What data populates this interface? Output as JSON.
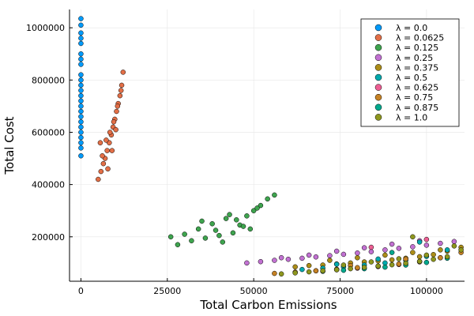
{
  "chart_data": {
    "type": "scatter",
    "title": "",
    "xlabel": "Total Carbon Emissions",
    "ylabel": "Total Cost",
    "xlim": [
      -3300,
      111000
    ],
    "ylim": [
      30000,
      1070000
    ],
    "xticks": [
      0,
      25000,
      50000,
      75000,
      100000
    ],
    "xtick_labels": [
      "0",
      "25000",
      "50000",
      "75000",
      "100000"
    ],
    "yticks": [
      200000,
      400000,
      600000,
      800000,
      1000000
    ],
    "ytick_labels": [
      "200000",
      "400000",
      "600000",
      "800000",
      "1000000"
    ],
    "grid": true,
    "legend_position": "top-right",
    "series": [
      {
        "name": "λ = 0.0",
        "color": "#009AFA",
        "x": [
          0,
          0,
          0,
          0,
          0,
          0,
          0,
          0,
          0,
          0,
          0,
          0,
          0,
          0,
          0,
          0,
          0,
          0,
          0,
          0,
          0,
          0,
          0,
          0
        ],
        "y": [
          510000,
          540000,
          580000,
          620000,
          660000,
          700000,
          740000,
          780000,
          820000,
          860000,
          900000,
          940000,
          980000,
          1010000,
          1035000,
          560000,
          600000,
          640000,
          680000,
          720000,
          760000,
          800000,
          880000,
          960000
        ]
      },
      {
        "name": "λ = 0.0625",
        "color": "#E36F47",
        "x": [
          5000,
          5800,
          6500,
          7000,
          7600,
          8200,
          8800,
          9300,
          9800,
          10300,
          10800,
          11300,
          11800,
          12200,
          6200,
          7300,
          8400,
          9500,
          10600,
          11600,
          5600,
          7800,
          9000,
          10100
        ],
        "y": [
          420000,
          450000,
          480000,
          500000,
          530000,
          560000,
          590000,
          620000,
          650000,
          680000,
          710000,
          740000,
          780000,
          830000,
          510000,
          570000,
          600000,
          640000,
          700000,
          760000,
          560000,
          460000,
          530000,
          610000
        ]
      },
      {
        "name": "λ = 0.125",
        "color": "#3EA44E",
        "x": [
          26000,
          28000,
          30000,
          32000,
          34000,
          36000,
          38000,
          40000,
          42000,
          44000,
          46000,
          48000,
          50000,
          52000,
          54000,
          56000,
          35000,
          39000,
          43000,
          47000,
          51000,
          41000,
          45000,
          49000
        ],
        "y": [
          200000,
          170000,
          210000,
          185000,
          230000,
          195000,
          250000,
          205000,
          270000,
          215000,
          245000,
          280000,
          300000,
          320000,
          345000,
          360000,
          260000,
          225000,
          285000,
          240000,
          310000,
          180000,
          265000,
          230000
        ]
      },
      {
        "name": "λ = 0.25",
        "color": "#C271D2",
        "x": [
          48000,
          52000,
          56000,
          60000,
          64000,
          68000,
          72000,
          76000,
          80000,
          84000,
          88000,
          92000,
          96000,
          100000,
          104000,
          108000,
          58000,
          66000,
          74000,
          82000,
          90000,
          98000
        ],
        "y": [
          100000,
          105000,
          110000,
          114000,
          118000,
          123000,
          128000,
          133000,
          138000,
          143000,
          150000,
          156000,
          162000,
          168000,
          175000,
          182000,
          120000,
          130000,
          145000,
          158000,
          172000,
          185000
        ]
      },
      {
        "name": "λ = 0.375",
        "color": "#AC8D18",
        "x": [
          62000,
          66000,
          70000,
          74000,
          78000,
          82000,
          86000,
          90000,
          94000,
          98000,
          102000,
          106000,
          110000,
          72000,
          80000,
          88000,
          96000,
          104000
        ],
        "y": [
          85000,
          90000,
          92000,
          96000,
          100000,
          104000,
          108000,
          112000,
          118000,
          124000,
          132000,
          145000,
          160000,
          110000,
          120000,
          130000,
          140000,
          150000
        ]
      },
      {
        "name": "λ = 0.5",
        "color": "#00A9AD",
        "x": [
          64000,
          70000,
          76000,
          82000,
          88000,
          94000,
          100000,
          106000,
          74000,
          86000,
          98000
        ],
        "y": [
          75000,
          80000,
          85000,
          92000,
          100000,
          110000,
          125000,
          150000,
          95000,
          115000,
          180000
        ]
      },
      {
        "name": "λ = 0.625",
        "color": "#ED5E93",
        "x": [
          68000,
          74000,
          80000,
          86000,
          92000,
          98000,
          104000,
          84000,
          100000
        ],
        "y": [
          70000,
          74000,
          80000,
          86000,
          94000,
          104000,
          120000,
          160000,
          190000
        ]
      },
      {
        "name": "λ = 0.75",
        "color": "#C68225",
        "x": [
          56000,
          62000,
          68000,
          74000,
          80000,
          86000,
          92000,
          98000,
          104000,
          110000,
          78000,
          94000
        ],
        "y": [
          60000,
          65000,
          70000,
          76000,
          82000,
          88000,
          96000,
          106000,
          120000,
          140000,
          90000,
          115000
        ]
      },
      {
        "name": "λ = 0.875",
        "color": "#00A98D",
        "x": [
          70000,
          76000,
          82000,
          88000,
          94000,
          100000,
          106000,
          90000
        ],
        "y": [
          68000,
          72000,
          78000,
          84000,
          92000,
          102000,
          118000,
          140000
        ]
      },
      {
        "name": "λ = 1.0",
        "color": "#8E971E",
        "x": [
          58000,
          62000,
          66000,
          70000,
          74000,
          78000,
          82000,
          86000,
          90000,
          94000,
          98000,
          102000,
          106000,
          110000,
          76000,
          84000,
          92000,
          100000,
          108000,
          96000
        ],
        "y": [
          58000,
          62000,
          66000,
          70000,
          74000,
          78000,
          83000,
          88000,
          93000,
          99000,
          106000,
          114000,
          124000,
          150000,
          92000,
          104000,
          116000,
          130000,
          165000,
          200000
        ]
      }
    ]
  }
}
